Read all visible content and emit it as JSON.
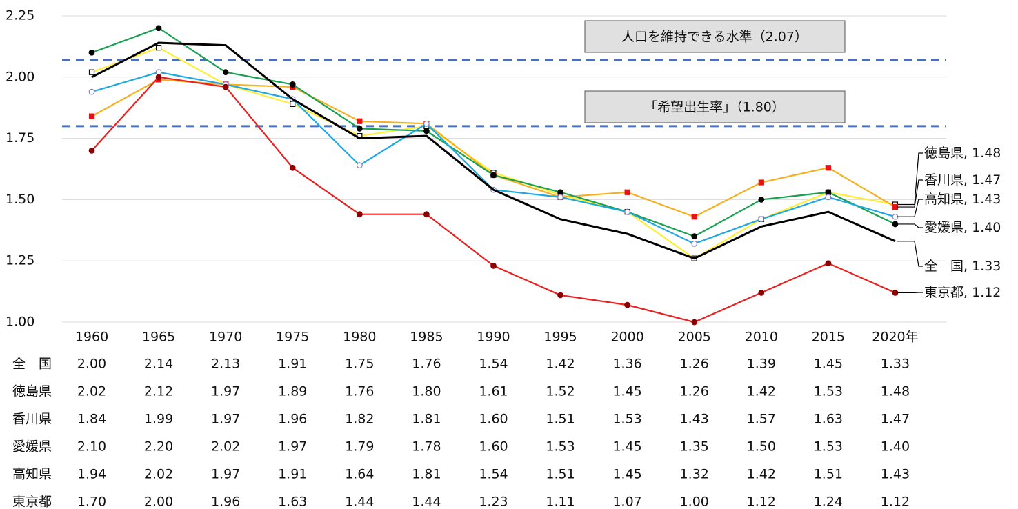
{
  "chart_data": {
    "type": "line",
    "categories": [
      "1960",
      "1965",
      "1970",
      "1975",
      "1980",
      "1985",
      "1990",
      "1995",
      "2000",
      "2005",
      "2010",
      "2015",
      "2020年"
    ],
    "ylim": [
      1.0,
      2.25
    ],
    "yticks": [
      {
        "value": 1,
        "label": "1.00"
      },
      1.25,
      {
        "value": 1.5,
        "label": "1.50"
      },
      1.75,
      {
        "value": 2,
        "label": "2.00"
      },
      2.25
    ],
    "grid": true,
    "reference_lines": [
      {
        "value": 2.07,
        "label": "人口を維持できる水準（2.07）",
        "color": "#4472c4"
      },
      {
        "value": 1.8,
        "label": "「希望出生率」（1.80）",
        "color": "#4472c4"
      }
    ],
    "series": [
      {
        "name": "全　国",
        "color": "#000000",
        "values": [
          2.0,
          2.14,
          2.13,
          1.91,
          1.75,
          1.76,
          1.54,
          1.42,
          1.36,
          1.26,
          1.39,
          1.45,
          1.33
        ],
        "value_labels": [
          "2.00",
          "2.14",
          "2.13",
          "1.91",
          "1.75",
          "1.76",
          "1.54",
          "1.42",
          "1.36",
          "1.26",
          "1.39",
          "1.45",
          "1.33"
        ]
      },
      {
        "name": "徳島県",
        "color": "#ffee33",
        "values": [
          2.02,
          2.12,
          1.97,
          1.89,
          1.76,
          1.8,
          1.61,
          1.52,
          1.45,
          1.26,
          1.42,
          1.53,
          1.48
        ],
        "value_labels": [
          "2.02",
          "2.12",
          "1.97",
          "1.89",
          "1.76",
          "1.80",
          "1.61",
          "1.52",
          "1.45",
          "1.26",
          "1.42",
          "1.53",
          "1.48"
        ]
      },
      {
        "name": "香川県",
        "color": "#f5b021",
        "values": [
          1.84,
          1.99,
          1.97,
          1.96,
          1.82,
          1.81,
          1.6,
          1.51,
          1.53,
          1.43,
          1.57,
          1.63,
          1.47
        ],
        "value_labels": [
          "1.84",
          "1.99",
          "1.97",
          "1.96",
          "1.82",
          "1.81",
          "1.60",
          "1.51",
          "1.53",
          "1.43",
          "1.57",
          "1.63",
          "1.47"
        ]
      },
      {
        "name": "愛媛県",
        "color": "#1aa050",
        "values": [
          2.1,
          2.2,
          2.02,
          1.97,
          1.79,
          1.78,
          1.6,
          1.53,
          1.45,
          1.35,
          1.5,
          1.53,
          1.4
        ],
        "value_labels": [
          "2.10",
          "2.20",
          "2.02",
          "1.97",
          "1.79",
          "1.78",
          "1.60",
          "1.53",
          "1.45",
          "1.35",
          "1.50",
          "1.53",
          "1.40"
        ]
      },
      {
        "name": "高知県",
        "color": "#1ea8e0",
        "values": [
          1.94,
          2.02,
          1.97,
          1.91,
          1.64,
          1.81,
          1.54,
          1.51,
          1.45,
          1.32,
          1.42,
          1.51,
          1.43
        ],
        "value_labels": [
          "1.94",
          "2.02",
          "1.97",
          "1.91",
          "1.64",
          "1.81",
          "1.54",
          "1.51",
          "1.45",
          "1.32",
          "1.42",
          "1.51",
          "1.43"
        ]
      },
      {
        "name": "東京都",
        "color": "#e82020",
        "values": [
          1.7,
          2.0,
          1.96,
          1.63,
          1.44,
          1.44,
          1.23,
          1.11,
          1.07,
          1.0,
          1.12,
          1.24,
          1.12
        ],
        "value_labels": [
          "1.70",
          "2.00",
          "1.96",
          "1.63",
          "1.44",
          "1.44",
          "1.23",
          "1.11",
          "1.07",
          "1.00",
          "1.12",
          "1.24",
          "1.12"
        ]
      }
    ]
  }
}
